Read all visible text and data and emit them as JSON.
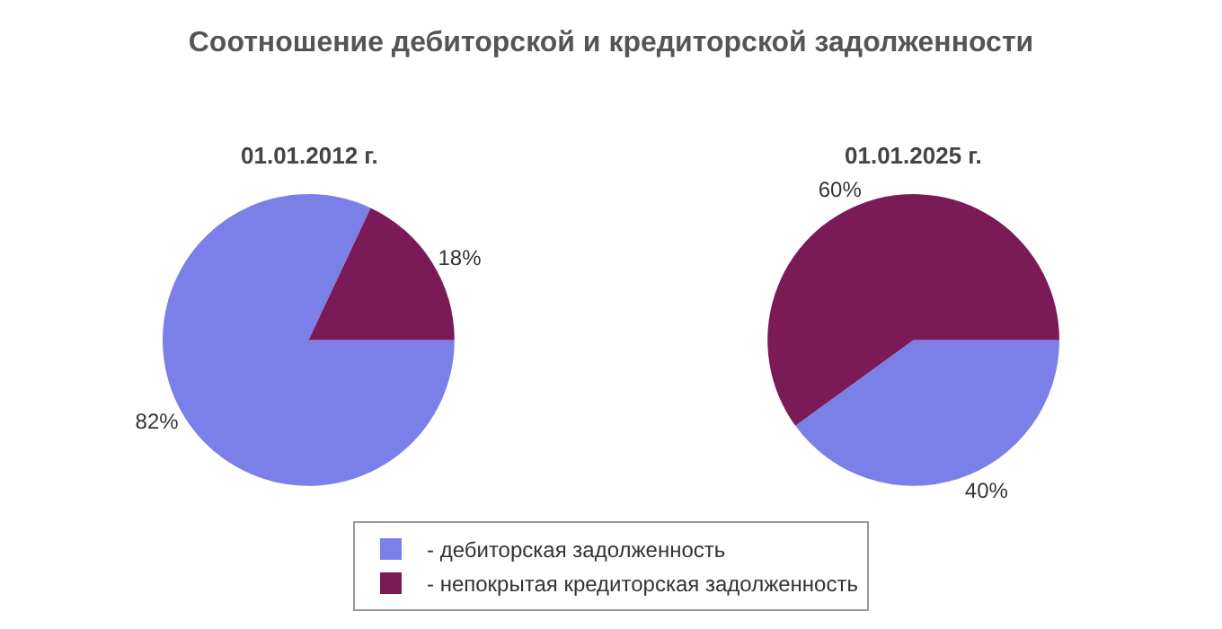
{
  "chart_data": [
    {
      "type": "pie",
      "title": "Соотношение дебиторской и кредиторской задолженности",
      "subtitle": "01.01.2012 г.",
      "categories": [
        "- дебиторская задолженность",
        "- непокрытая кредиторская задолженность"
      ],
      "values": [
        82,
        18
      ],
      "value_labels": [
        "82%",
        "18%"
      ],
      "colors": [
        "#7b7fe8",
        "#7a1a57"
      ],
      "legend": "bottom"
    },
    {
      "type": "pie",
      "subtitle": "01.01.2025 г.",
      "categories": [
        null,
        null
      ],
      "values": [
        40,
        60
      ],
      "value_labels": [
        "40%",
        "60%"
      ],
      "colors": [
        "#7b7fe8",
        "#7a1a57"
      ]
    }
  ]
}
